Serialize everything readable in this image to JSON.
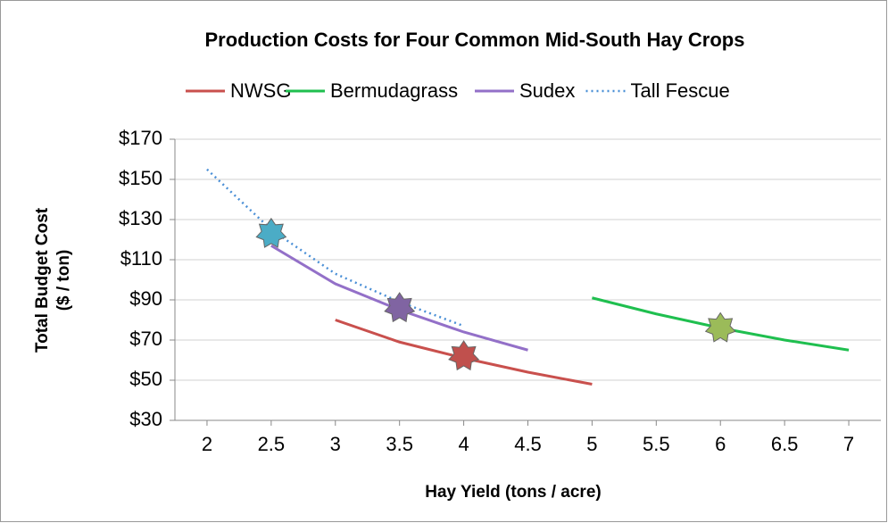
{
  "chart_data": {
    "type": "line",
    "title": "Production Costs for Four Common Mid-South Hay Crops",
    "x_label": "Hay Yield (tons / acre)",
    "y_label": [
      "Total Budget Cost",
      "($ / ton)"
    ],
    "xlim": [
      1.75,
      7.25
    ],
    "xticks": [
      2,
      2.5,
      3,
      3.5,
      4,
      4.5,
      5,
      5.5,
      6,
      6.5,
      7
    ],
    "ylim": [
      30,
      170
    ],
    "yticks": [
      {
        "value": 30,
        "label": "$30"
      },
      {
        "value": 50,
        "label": "$50"
      },
      {
        "value": 70,
        "label": "$70"
      },
      {
        "value": 90,
        "label": "$90"
      },
      {
        "value": 110,
        "label": "$110"
      },
      {
        "value": 130,
        "label": "$130"
      },
      {
        "value": 150,
        "label": "$150"
      },
      {
        "value": 170,
        "label": "$170"
      }
    ],
    "grid": true,
    "legend": "top",
    "series": [
      {
        "name": "NWSG",
        "color": "#c9504d",
        "dashed": false,
        "x": [
          3,
          3.5,
          4,
          4.5,
          5
        ],
        "values": [
          80,
          69,
          61,
          54,
          48
        ],
        "marker": {
          "x": 4,
          "y": 62,
          "color": "#c0504d"
        }
      },
      {
        "name": "Bermudagrass",
        "color": "#1fbf4f",
        "dashed": false,
        "x": [
          5,
          5.5,
          6,
          6.5,
          7
        ],
        "values": [
          91,
          83,
          76,
          70,
          65
        ],
        "marker": {
          "x": 6,
          "y": 76,
          "color": "#9bbb59"
        }
      },
      {
        "name": "Sudex",
        "color": "#9370c8",
        "dashed": false,
        "x": [
          2.5,
          3,
          3.5,
          4,
          4.5
        ],
        "values": [
          117,
          98,
          85,
          74,
          65
        ],
        "marker": {
          "x": 3.5,
          "y": 86,
          "color": "#8064a2"
        }
      },
      {
        "name": "Tall Fescue",
        "color": "#4a8fd6",
        "dashed": true,
        "x": [
          2,
          2.5,
          3,
          3.5,
          4
        ],
        "values": [
          155,
          125,
          103,
          89,
          77
        ],
        "marker": {
          "x": 2.5,
          "y": 123,
          "color": "#4bacc6"
        }
      }
    ]
  }
}
